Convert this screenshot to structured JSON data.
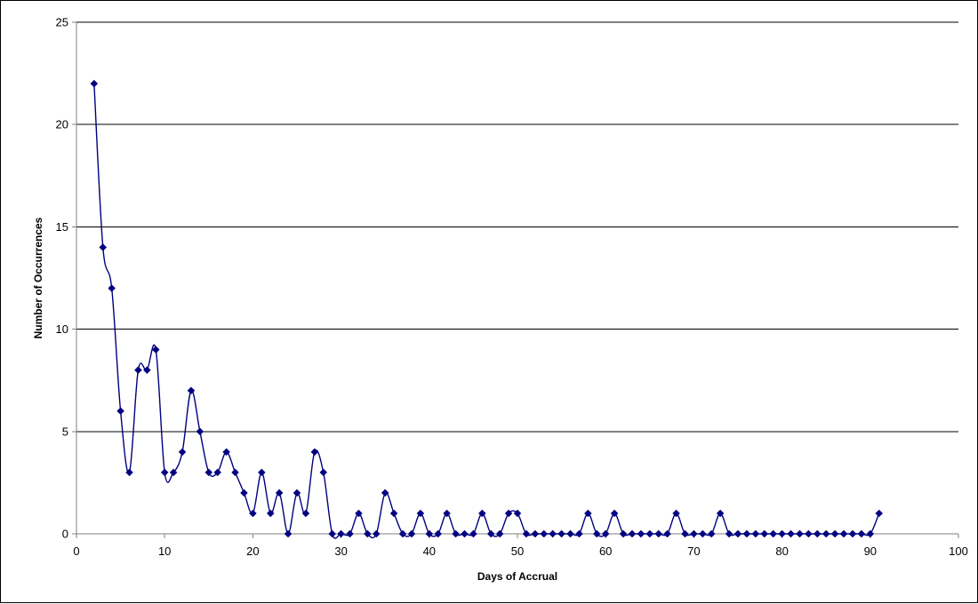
{
  "chart_data": {
    "type": "line",
    "title": "",
    "xlabel": "Days of Accrual",
    "ylabel": "Number of Occurrences",
    "xlim": [
      0,
      100
    ],
    "ylim": [
      0,
      25
    ],
    "x_ticks": [
      0,
      10,
      20,
      30,
      40,
      50,
      60,
      70,
      80,
      90,
      100
    ],
    "y_ticks": [
      0,
      5,
      10,
      15,
      20,
      25
    ],
    "grid": "horizontal major gridlines",
    "legend": "none",
    "marker": "diamond",
    "smoothed": true,
    "colors": {
      "series": "#000080",
      "grid": "#000000",
      "axis": "#808080",
      "frame": "#000000"
    },
    "series": [
      {
        "x": [
          2,
          3,
          4,
          5,
          6,
          7,
          8,
          9,
          10,
          11,
          12,
          13,
          14,
          15,
          16,
          17,
          18,
          19,
          20,
          21,
          22,
          23,
          24,
          25,
          26,
          27,
          28,
          29,
          30,
          31,
          32,
          33,
          34,
          35,
          36,
          37,
          38,
          39,
          40,
          41,
          42,
          43,
          44,
          45,
          46,
          47,
          48,
          49,
          50,
          51,
          52,
          53,
          54,
          55,
          56,
          57,
          58,
          59,
          60,
          61,
          62,
          63,
          64,
          65,
          66,
          67,
          68,
          69,
          70,
          71,
          72,
          73,
          74,
          75,
          76,
          77,
          78,
          79,
          80,
          81,
          82,
          83,
          84,
          85,
          86,
          87,
          88,
          89,
          90,
          91
        ],
        "values": [
          22,
          14,
          12,
          6,
          3,
          8,
          8,
          9,
          3,
          3,
          4,
          7,
          5,
          3,
          3,
          4,
          3,
          2,
          1,
          3,
          1,
          2,
          0,
          2,
          1,
          4,
          3,
          0,
          0,
          0,
          1,
          0,
          0,
          2,
          1,
          0,
          0,
          1,
          0,
          0,
          1,
          0,
          0,
          0,
          1,
          0,
          0,
          1,
          1,
          0,
          0,
          0,
          0,
          0,
          0,
          0,
          1,
          0,
          0,
          1,
          0,
          0,
          0,
          0,
          0,
          0,
          1,
          0,
          0,
          0,
          0,
          1,
          0,
          0,
          0,
          0,
          0,
          0,
          0,
          0,
          0,
          0,
          0,
          0,
          0,
          0,
          0,
          0,
          0,
          1
        ]
      }
    ]
  }
}
